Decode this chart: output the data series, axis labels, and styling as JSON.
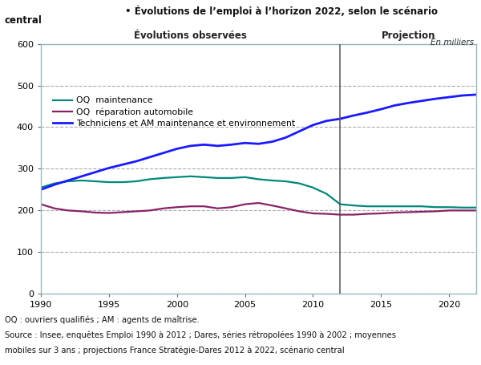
{
  "title_line1": "• Évolutions de l’emploi à l’horizon 2022, selon le scénario",
  "title_line2": "central",
  "unit_label": "En milliers",
  "label_observed": "Évolutions observées",
  "label_projection": "Projection",
  "ylim": [
    0,
    600
  ],
  "yticks": [
    0,
    100,
    200,
    300,
    400,
    500,
    600
  ],
  "xticks": [
    1990,
    1995,
    2000,
    2005,
    2010,
    2015,
    2020
  ],
  "split_year": 2012,
  "footnote1": "OQ : ouvriers qualifiés ; AM : agents de maîtrise.",
  "footnote2": "Source : Insee, enquêtes Emploi 1990 à 2012 ; Dares, séries rétropolées 1990 à 2002 ; moyennes",
  "footnote3": "mobiles sur 3 ans ; projections France Stratégie-Dares 2012 à 2022, scénario central",
  "color_oq_maint": "#008878",
  "color_oq_rep": "#882266",
  "color_tech": "#1a1aff",
  "legend_labels": [
    "OQ  maintenance",
    "OQ  réparation automobile",
    "Techniciens et AM maintenance et environnement"
  ],
  "years_obs": [
    1990,
    1991,
    1992,
    1993,
    1994,
    1995,
    1996,
    1997,
    1998,
    1999,
    2000,
    2001,
    2002,
    2003,
    2004,
    2005,
    2006,
    2007,
    2008,
    2009,
    2010,
    2011,
    2012
  ],
  "oq_maint_obs": [
    255,
    265,
    270,
    272,
    270,
    268,
    268,
    270,
    275,
    278,
    280,
    282,
    280,
    278,
    278,
    280,
    275,
    272,
    270,
    265,
    255,
    240,
    215
  ],
  "oq_rep_obs": [
    215,
    205,
    200,
    198,
    195,
    194,
    196,
    198,
    200,
    205,
    208,
    210,
    210,
    205,
    208,
    215,
    218,
    212,
    205,
    198,
    193,
    192,
    190
  ],
  "tech_obs": [
    250,
    262,
    272,
    282,
    292,
    302,
    310,
    318,
    328,
    338,
    348,
    355,
    358,
    355,
    358,
    362,
    360,
    365,
    375,
    390,
    405,
    415,
    420
  ],
  "years_proj": [
    2012,
    2013,
    2014,
    2015,
    2016,
    2017,
    2018,
    2019,
    2020,
    2021,
    2022
  ],
  "oq_maint_proj": [
    215,
    212,
    210,
    210,
    210,
    210,
    210,
    208,
    208,
    207,
    207
  ],
  "oq_rep_proj": [
    190,
    190,
    192,
    193,
    195,
    196,
    197,
    198,
    200,
    200,
    200
  ],
  "tech_proj": [
    420,
    428,
    435,
    443,
    452,
    458,
    463,
    468,
    472,
    476,
    478
  ]
}
